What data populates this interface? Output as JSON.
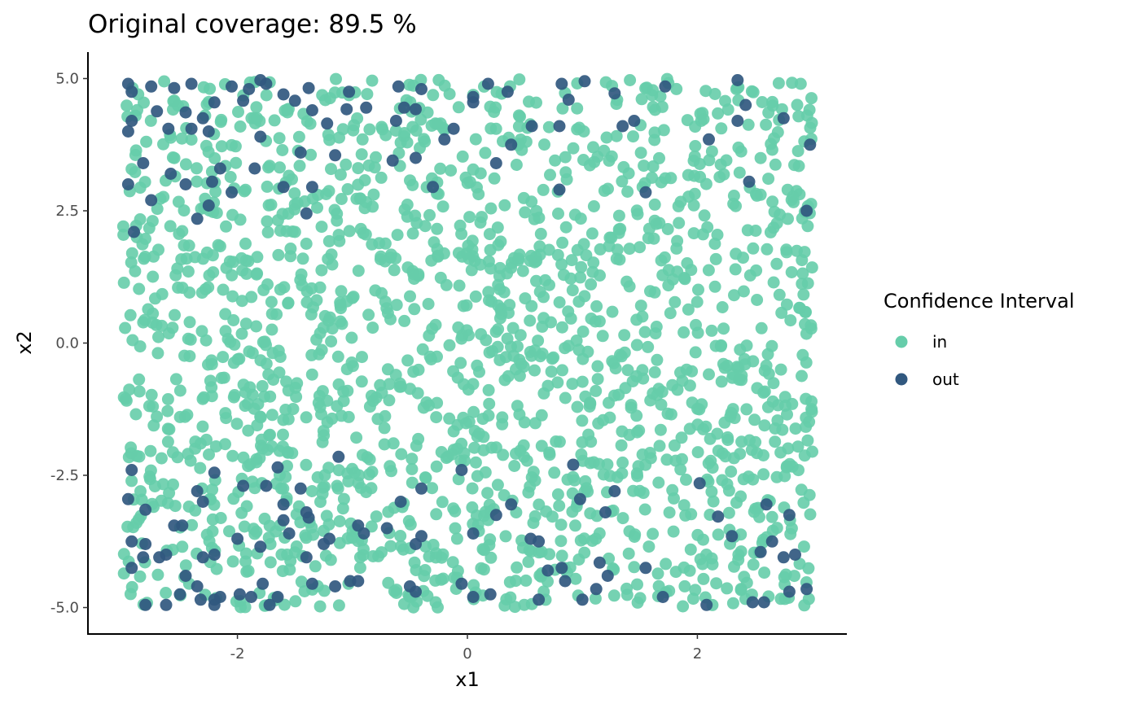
{
  "chart_data": {
    "type": "scatter",
    "title": "Original coverage: 89.5 %",
    "xlabel": "x1",
    "ylabel": "x2",
    "xlim": [
      -3.3,
      3.3
    ],
    "ylim": [
      -5.5,
      5.5
    ],
    "x_ticks": [
      -2,
      0,
      2
    ],
    "x_tick_labels": [
      "-2",
      "0",
      "2"
    ],
    "y_ticks": [
      -5,
      -2.5,
      0,
      2.5,
      5
    ],
    "y_tick_labels": [
      "-5.0",
      "-2.5",
      "0.0",
      "2.5",
      "5.0"
    ],
    "grid": false,
    "legend": {
      "title": "Confidence Interval",
      "placement": "right",
      "entries": [
        {
          "label": "in",
          "color": "#66cdaa"
        },
        {
          "label": "out",
          "color": "#31587f"
        }
      ]
    },
    "point_count_note": "approximately 2000 points uniformly spread over x1 in [-3, 3] and x2 in [-5, 5]; out points concentrated near x2 = ±5",
    "series": [
      {
        "name": "out",
        "color": "#31587f",
        "points": [
          [
            -2.95,
            4.9
          ],
          [
            -2.92,
            4.75
          ],
          [
            -2.75,
            4.85
          ],
          [
            -2.55,
            4.82
          ],
          [
            -2.4,
            4.9
          ],
          [
            -2.05,
            4.85
          ],
          [
            -1.9,
            4.8
          ],
          [
            -1.8,
            4.97
          ],
          [
            -1.75,
            4.9
          ],
          [
            -1.38,
            4.82
          ],
          [
            -1.03,
            4.75
          ],
          [
            -0.6,
            4.85
          ],
          [
            -0.4,
            4.8
          ],
          [
            0.05,
            4.65
          ],
          [
            0.18,
            4.9
          ],
          [
            0.35,
            4.75
          ],
          [
            0.82,
            4.9
          ],
          [
            1.02,
            4.95
          ],
          [
            1.28,
            4.72
          ],
          [
            1.72,
            4.85
          ],
          [
            2.35,
            4.97
          ],
          [
            -2.92,
            4.2
          ],
          [
            -2.7,
            4.38
          ],
          [
            -2.6,
            4.05
          ],
          [
            -2.45,
            4.36
          ],
          [
            -2.3,
            4.25
          ],
          [
            -2.2,
            4.55
          ],
          [
            -1.95,
            4.58
          ],
          [
            -1.6,
            4.7
          ],
          [
            -1.5,
            4.58
          ],
          [
            -1.35,
            4.4
          ],
          [
            -1.22,
            4.15
          ],
          [
            -1.05,
            4.42
          ],
          [
            -0.88,
            4.45
          ],
          [
            -0.62,
            4.2
          ],
          [
            -0.45,
            4.42
          ],
          [
            -0.2,
            3.85
          ],
          [
            -0.12,
            4.05
          ],
          [
            0.05,
            4.55
          ],
          [
            0.38,
            3.75
          ],
          [
            0.25,
            3.4
          ],
          [
            0.56,
            4.1
          ],
          [
            0.8,
            4.1
          ],
          [
            0.88,
            4.6
          ],
          [
            1.35,
            4.1
          ],
          [
            1.45,
            4.2
          ],
          [
            2.1,
            3.85
          ],
          [
            2.35,
            4.2
          ],
          [
            2.42,
            4.5
          ],
          [
            2.75,
            4.25
          ],
          [
            2.98,
            3.75
          ],
          [
            -2.95,
            3.0
          ],
          [
            -2.82,
            3.4
          ],
          [
            -2.58,
            3.2
          ],
          [
            -2.45,
            3.0
          ],
          [
            -2.22,
            3.05
          ],
          [
            -2.15,
            3.3
          ],
          [
            -1.85,
            3.3
          ],
          [
            -1.6,
            2.95
          ],
          [
            -1.35,
            2.95
          ],
          [
            -1.15,
            3.55
          ],
          [
            -0.65,
            3.45
          ],
          [
            -0.45,
            3.5
          ],
          [
            -0.3,
            2.95
          ],
          [
            0.8,
            2.9
          ],
          [
            1.55,
            2.85
          ],
          [
            2.45,
            3.05
          ],
          [
            2.95,
            2.5
          ],
          [
            -2.9,
            2.1
          ],
          [
            -2.75,
            2.7
          ],
          [
            -2.35,
            2.35
          ],
          [
            -2.25,
            2.6
          ],
          [
            -2.05,
            2.85
          ],
          [
            -1.4,
            2.45
          ],
          [
            -2.95,
            4.0
          ],
          [
            -2.4,
            4.05
          ],
          [
            -2.25,
            4.0
          ],
          [
            -1.8,
            3.9
          ],
          [
            -1.45,
            3.6
          ],
          [
            -0.55,
            4.45
          ],
          [
            -2.95,
            -2.95
          ],
          [
            -2.92,
            -2.4
          ],
          [
            -2.2,
            -2.45
          ],
          [
            -1.65,
            -2.35
          ],
          [
            -1.12,
            -2.15
          ],
          [
            -0.05,
            -2.4
          ],
          [
            0.92,
            -2.3
          ],
          [
            -2.35,
            -2.8
          ],
          [
            -1.95,
            -2.7
          ],
          [
            -1.75,
            -2.7
          ],
          [
            -1.45,
            -2.75
          ],
          [
            -0.4,
            -2.75
          ],
          [
            -2.8,
            -3.15
          ],
          [
            -2.55,
            -3.45
          ],
          [
            -2.3,
            -3.0
          ],
          [
            -1.6,
            -3.05
          ],
          [
            -1.6,
            -3.35
          ],
          [
            -1.4,
            -3.2
          ],
          [
            -1.38,
            -3.3
          ],
          [
            -0.95,
            -3.45
          ],
          [
            -0.58,
            -3.0
          ],
          [
            0.25,
            -3.25
          ],
          [
            0.38,
            -3.05
          ],
          [
            0.98,
            -2.95
          ],
          [
            1.2,
            -3.2
          ],
          [
            1.28,
            -2.8
          ],
          [
            2.02,
            -2.65
          ],
          [
            2.18,
            -3.28
          ],
          [
            2.6,
            -3.05
          ],
          [
            2.8,
            -3.25
          ],
          [
            -2.92,
            -3.75
          ],
          [
            -2.8,
            -3.8
          ],
          [
            -2.82,
            -4.05
          ],
          [
            -2.68,
            -4.05
          ],
          [
            -2.62,
            -4.0
          ],
          [
            -2.48,
            -3.45
          ],
          [
            -2.3,
            -4.05
          ],
          [
            -2.2,
            -4.0
          ],
          [
            -2.0,
            -3.7
          ],
          [
            -1.8,
            -3.85
          ],
          [
            -1.55,
            -3.6
          ],
          [
            -1.4,
            -4.05
          ],
          [
            -1.25,
            -3.8
          ],
          [
            -1.2,
            -3.7
          ],
          [
            -0.9,
            -3.6
          ],
          [
            -0.7,
            -3.5
          ],
          [
            -0.45,
            -3.8
          ],
          [
            -0.4,
            -3.65
          ],
          [
            0.05,
            -3.6
          ],
          [
            0.55,
            -3.7
          ],
          [
            0.62,
            -3.75
          ],
          [
            0.7,
            -4.3
          ],
          [
            0.82,
            -4.25
          ],
          [
            1.15,
            -4.15
          ],
          [
            1.55,
            -4.25
          ],
          [
            2.3,
            -3.65
          ],
          [
            2.55,
            -3.95
          ],
          [
            2.65,
            -3.75
          ],
          [
            2.75,
            -4.05
          ],
          [
            2.85,
            -4.0
          ],
          [
            -2.92,
            -4.25
          ],
          [
            -2.8,
            -4.95
          ],
          [
            -2.62,
            -4.95
          ],
          [
            -2.5,
            -4.75
          ],
          [
            -2.45,
            -4.4
          ],
          [
            -2.35,
            -4.6
          ],
          [
            -2.32,
            -4.85
          ],
          [
            -2.2,
            -4.85
          ],
          [
            -2.2,
            -4.95
          ],
          [
            -2.15,
            -4.8
          ],
          [
            -1.98,
            -4.75
          ],
          [
            -1.88,
            -4.8
          ],
          [
            -1.78,
            -4.55
          ],
          [
            -1.72,
            -4.95
          ],
          [
            -1.65,
            -4.8
          ],
          [
            -1.35,
            -4.55
          ],
          [
            -1.15,
            -4.6
          ],
          [
            -1.02,
            -4.5
          ],
          [
            -0.95,
            -4.5
          ],
          [
            -0.5,
            -4.6
          ],
          [
            -0.45,
            -4.7
          ],
          [
            -0.05,
            -4.55
          ],
          [
            0.05,
            -4.8
          ],
          [
            0.2,
            -4.75
          ],
          [
            0.62,
            -4.85
          ],
          [
            0.85,
            -4.5
          ],
          [
            1.0,
            -4.85
          ],
          [
            1.12,
            -4.65
          ],
          [
            1.22,
            -4.4
          ],
          [
            1.7,
            -4.8
          ],
          [
            2.08,
            -4.95
          ],
          [
            2.48,
            -4.9
          ],
          [
            2.58,
            -4.9
          ],
          [
            2.8,
            -4.7
          ],
          [
            2.95,
            -4.65
          ]
        ]
      }
    ]
  },
  "legend_text": {
    "title": "Confidence Interval",
    "in": "in",
    "out": "out"
  },
  "colors": {
    "in": "#66cdaa",
    "out": "#31587f",
    "axis": "#000000",
    "tick_text": "#4d4d4d"
  }
}
